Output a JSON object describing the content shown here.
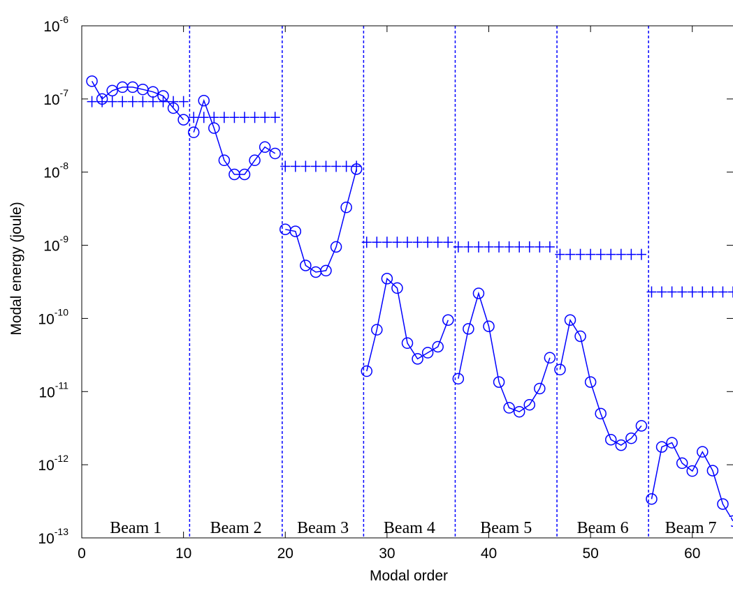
{
  "chart_data": {
    "type": "line",
    "xlabel": "Modal order",
    "ylabel": "Modal energy (joule)",
    "xlim": [
      0,
      64
    ],
    "ylim_exponent": [
      -13,
      -6
    ],
    "y_scale": "log",
    "x_ticks": [
      "0",
      "10",
      "20",
      "30",
      "40",
      "50",
      "60"
    ],
    "y_ticks": [
      {
        "base": "10",
        "exp": "-13"
      },
      {
        "base": "10",
        "exp": "-12"
      },
      {
        "base": "10",
        "exp": "-11"
      },
      {
        "base": "10",
        "exp": "-10"
      },
      {
        "base": "10",
        "exp": "-9"
      },
      {
        "base": "10",
        "exp": "-8"
      },
      {
        "base": "10",
        "exp": "-7"
      },
      {
        "base": "10",
        "exp": "-6"
      }
    ],
    "color": "#0000ff",
    "grid": false,
    "series": [
      {
        "marker": "circle",
        "line": true,
        "segments": [
          {
            "x": [
              1,
              2,
              3,
              4,
              5,
              6,
              7,
              8,
              9,
              10
            ],
            "y": [
              1.75e-07,
              1e-07,
              1.3e-07,
              1.45e-07,
              1.45e-07,
              1.35e-07,
              1.25e-07,
              1.1e-07,
              7.5e-08,
              5.2e-08
            ]
          },
          {
            "x": [
              11,
              12,
              13,
              14,
              15,
              16,
              17,
              18,
              19
            ],
            "y": [
              3.5e-08,
              9.5e-08,
              4e-08,
              1.45e-08,
              9.3e-09,
              9.3e-09,
              1.45e-08,
              2.2e-08,
              1.8e-08
            ]
          },
          {
            "x": [
              20,
              21,
              22,
              23,
              24,
              25,
              26,
              27
            ],
            "y": [
              1.65e-09,
              1.55e-09,
              5.3e-10,
              4.3e-10,
              4.5e-10,
              9.5e-10,
              3.3e-09,
              1.1e-08
            ]
          },
          {
            "x": [
              28,
              29,
              30,
              31,
              32,
              33,
              34,
              35,
              36
            ],
            "y": [
              1.9e-11,
              7e-11,
              3.5e-10,
              2.6e-10,
              4.6e-11,
              2.8e-11,
              3.4e-11,
              4.1e-11,
              9.5e-11
            ]
          },
          {
            "x": [
              37,
              38,
              39,
              40,
              41,
              42,
              43,
              44,
              45,
              46
            ],
            "y": [
              1.5e-11,
              7.2e-11,
              2.2e-10,
              7.8e-11,
              1.35e-11,
              6e-12,
              5.3e-12,
              6.6e-12,
              1.1e-11,
              2.9e-11
            ]
          },
          {
            "x": [
              47,
              48,
              49,
              50,
              51,
              52,
              53,
              54,
              55
            ],
            "y": [
              2e-11,
              9.5e-11,
              5.7e-11,
              1.35e-11,
              5e-12,
              2.2e-12,
              1.85e-12,
              2.3e-12,
              3.4e-12
            ]
          },
          {
            "x": [
              56,
              57,
              58,
              59,
              60,
              61,
              62,
              63,
              64
            ],
            "y": [
              3.4e-13,
              1.75e-12,
              2e-12,
              1.05e-12,
              8.2e-13,
              1.5e-12,
              8.3e-13,
              2.9e-13,
              1.7e-13
            ]
          }
        ]
      },
      {
        "marker": "plus",
        "line": false,
        "segments": [
          {
            "x": [
              1,
              2,
              3,
              4,
              5,
              6,
              7,
              8,
              9,
              10
            ],
            "y": [
              9.2e-08,
              9.2e-08,
              9.2e-08,
              9.2e-08,
              9.2e-08,
              9.2e-08,
              9.2e-08,
              9.2e-08,
              9.2e-08,
              9.2e-08
            ]
          },
          {
            "x": [
              11,
              12,
              13,
              14,
              15,
              16,
              17,
              18,
              19
            ],
            "y": [
              5.6e-08,
              5.6e-08,
              5.6e-08,
              5.6e-08,
              5.6e-08,
              5.6e-08,
              5.6e-08,
              5.6e-08,
              5.6e-08
            ]
          },
          {
            "x": [
              20,
              21,
              22,
              23,
              24,
              25,
              26,
              27
            ],
            "y": [
              1.2e-08,
              1.2e-08,
              1.2e-08,
              1.2e-08,
              1.2e-08,
              1.2e-08,
              1.2e-08,
              1.2e-08
            ]
          },
          {
            "x": [
              28,
              29,
              30,
              31,
              32,
              33,
              34,
              35,
              36
            ],
            "y": [
              1.1e-09,
              1.1e-09,
              1.1e-09,
              1.1e-09,
              1.1e-09,
              1.1e-09,
              1.1e-09,
              1.1e-09,
              1.1e-09
            ]
          },
          {
            "x": [
              37,
              38,
              39,
              40,
              41,
              42,
              43,
              44,
              45,
              46
            ],
            "y": [
              9.5e-10,
              9.5e-10,
              9.5e-10,
              9.5e-10,
              9.5e-10,
              9.5e-10,
              9.5e-10,
              9.5e-10,
              9.5e-10,
              9.5e-10
            ]
          },
          {
            "x": [
              47,
              48,
              49,
              50,
              51,
              52,
              53,
              54,
              55
            ],
            "y": [
              7.5e-10,
              7.5e-10,
              7.5e-10,
              7.5e-10,
              7.5e-10,
              7.5e-10,
              7.5e-10,
              7.5e-10,
              7.5e-10
            ]
          },
          {
            "x": [
              56,
              57,
              58,
              59,
              60,
              61,
              62,
              63,
              64
            ],
            "y": [
              2.3e-10,
              2.3e-10,
              2.3e-10,
              2.3e-10,
              2.3e-10,
              2.3e-10,
              2.3e-10,
              2.3e-10,
              2.3e-10
            ]
          }
        ]
      }
    ],
    "dividers_x": [
      10.6,
      19.7,
      27.7,
      36.7,
      46.7,
      55.7
    ],
    "regions": [
      {
        "label": "Beam 1",
        "x_start": 0,
        "x_end": 10.6
      },
      {
        "label": "Beam 2",
        "x_start": 10.6,
        "x_end": 19.7
      },
      {
        "label": "Beam 3",
        "x_start": 19.7,
        "x_end": 27.7
      },
      {
        "label": "Beam 4",
        "x_start": 27.7,
        "x_end": 36.7
      },
      {
        "label": "Beam 5",
        "x_start": 36.7,
        "x_end": 46.7
      },
      {
        "label": "Beam 6",
        "x_start": 46.7,
        "x_end": 55.7
      },
      {
        "label": "Beam 7",
        "x_start": 55.7,
        "x_end": 64
      }
    ]
  }
}
